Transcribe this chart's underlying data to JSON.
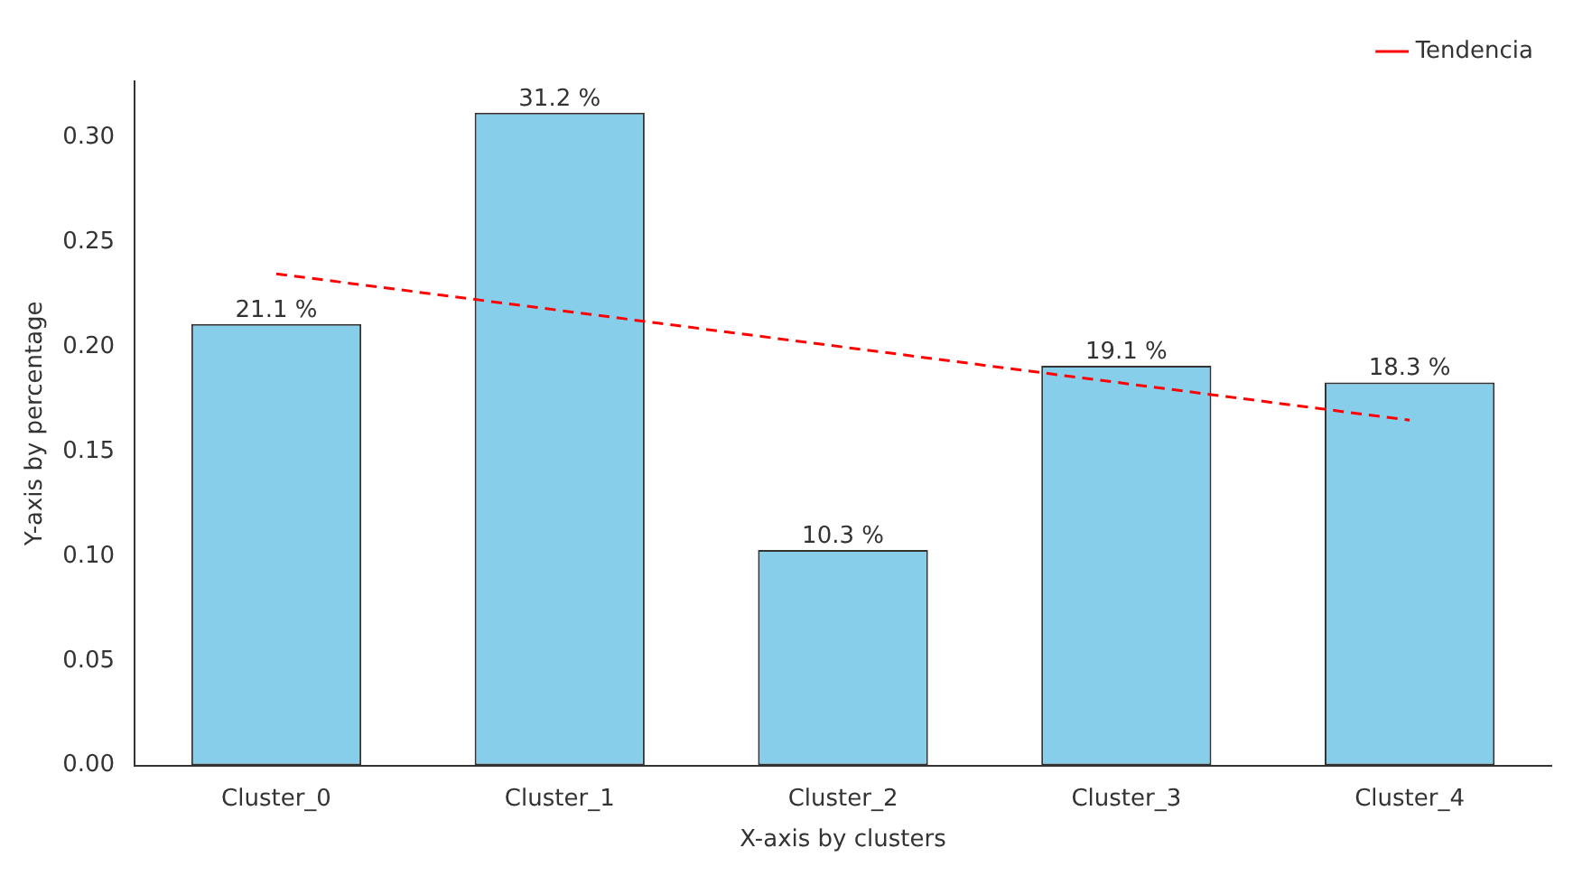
{
  "chart_data": {
    "type": "bar",
    "xlabel": "X-axis by clusters",
    "ylabel": "Y-axis by percentage",
    "categories": [
      "Cluster_0",
      "Cluster_1",
      "Cluster_2",
      "Cluster_3",
      "Cluster_4"
    ],
    "series": [
      {
        "color": "#87ceeb",
        "values": [
          0.211,
          0.312,
          0.103,
          0.191,
          0.183
        ],
        "value_labels": [
          "21.1 %",
          "31.2 %",
          "10.3 %",
          "19.1 %",
          "18.3 %"
        ]
      },
      {
        "type": "line",
        "name": "Tendencia",
        "color": "#ff0000",
        "line_style": "dashed",
        "marker": "none",
        "x": [
          "Cluster_0",
          "Cluster_4"
        ],
        "values": [
          0.235,
          0.165
        ]
      }
    ],
    "ylim": [
      0,
      0.327
    ],
    "yticks": [
      {
        "value": 0,
        "label": "0.00"
      },
      {
        "value": 0.05,
        "label": "0.05"
      },
      {
        "value": 0.1,
        "label": "0.10"
      },
      {
        "value": 0.15,
        "label": "0.15"
      },
      {
        "value": 0.2,
        "label": "0.20"
      },
      {
        "value": 0.25,
        "label": "0.25"
      },
      {
        "value": 0.3,
        "label": "0.30"
      }
    ],
    "grid": false,
    "legend": "top right"
  }
}
